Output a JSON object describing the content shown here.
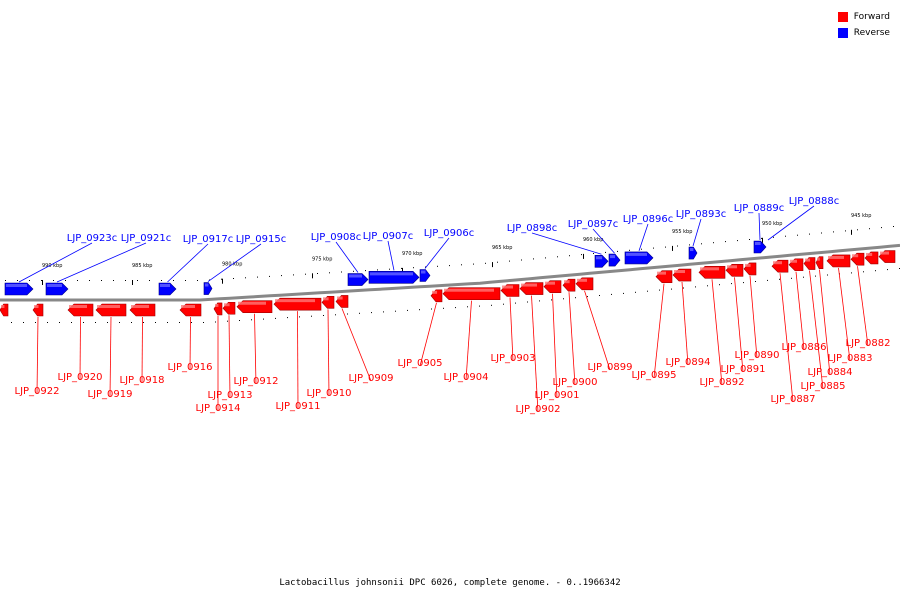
{
  "legend": {
    "forward": {
      "label": "Forward",
      "color": "#ff0000"
    },
    "reverse": {
      "label": "Reverse",
      "color": "#0000ff"
    }
  },
  "footer": "Lactobacillus johnsonii DPC 6026, complete genome. - 0..1966342",
  "scale": {
    "unit": "kbp",
    "ticks": [
      {
        "kbp": 990,
        "label": "990 kbp"
      },
      {
        "kbp": 985,
        "label": "985 kbp"
      },
      {
        "kbp": 980,
        "label": "980 kbp"
      },
      {
        "kbp": 975,
        "label": "975 kbp"
      },
      {
        "kbp": 970,
        "label": "970 kbp"
      },
      {
        "kbp": 965,
        "label": "965 kbp"
      },
      {
        "kbp": 960,
        "label": "960 kbp"
      },
      {
        "kbp": 955,
        "label": "955 kbp"
      },
      {
        "kbp": 950,
        "label": "950 kbp"
      },
      {
        "kbp": 945,
        "label": "945 kbp"
      }
    ]
  },
  "reverse_genes": [
    {
      "label": "LJP_0923c"
    },
    {
      "label": "LJP_0921c"
    },
    {
      "label": "LJP_0917c"
    },
    {
      "label": "LJP_0915c"
    },
    {
      "label": "LJP_0908c"
    },
    {
      "label": "LJP_0907c"
    },
    {
      "label": "LJP_0906c"
    },
    {
      "label": "LJP_0898c"
    },
    {
      "label": "LJP_0897c"
    },
    {
      "label": "LJP_0896c"
    },
    {
      "label": "LJP_0893c"
    },
    {
      "label": "LJP_0889c"
    },
    {
      "label": "LJP_0888c"
    }
  ],
  "forward_genes": [
    {
      "label": "LJP_0922"
    },
    {
      "label": "LJP_0920"
    },
    {
      "label": "LJP_0919"
    },
    {
      "label": "LJP_0918"
    },
    {
      "label": "LJP_0916"
    },
    {
      "label": "LJP_0914"
    },
    {
      "label": "LJP_0913"
    },
    {
      "label": "LJP_0912"
    },
    {
      "label": "LJP_0911"
    },
    {
      "label": "LJP_0910"
    },
    {
      "label": "LJP_0909"
    },
    {
      "label": "LJP_0905"
    },
    {
      "label": "LJP_0904"
    },
    {
      "label": "LJP_0903"
    },
    {
      "label": "LJP_0902"
    },
    {
      "label": "LJP_0901"
    },
    {
      "label": "LJP_0900"
    },
    {
      "label": "LJP_0899"
    },
    {
      "label": "LJP_0895"
    },
    {
      "label": "LJP_0894"
    },
    {
      "label": "LJP_0892"
    },
    {
      "label": "LJP_0891"
    },
    {
      "label": "LJP_0890"
    },
    {
      "label": "LJP_0887"
    },
    {
      "label": "LJP_0886"
    },
    {
      "label": "LJP_0885"
    },
    {
      "label": "LJP_0884"
    },
    {
      "label": "LJP_0883"
    },
    {
      "label": "LJP_0882"
    }
  ]
}
